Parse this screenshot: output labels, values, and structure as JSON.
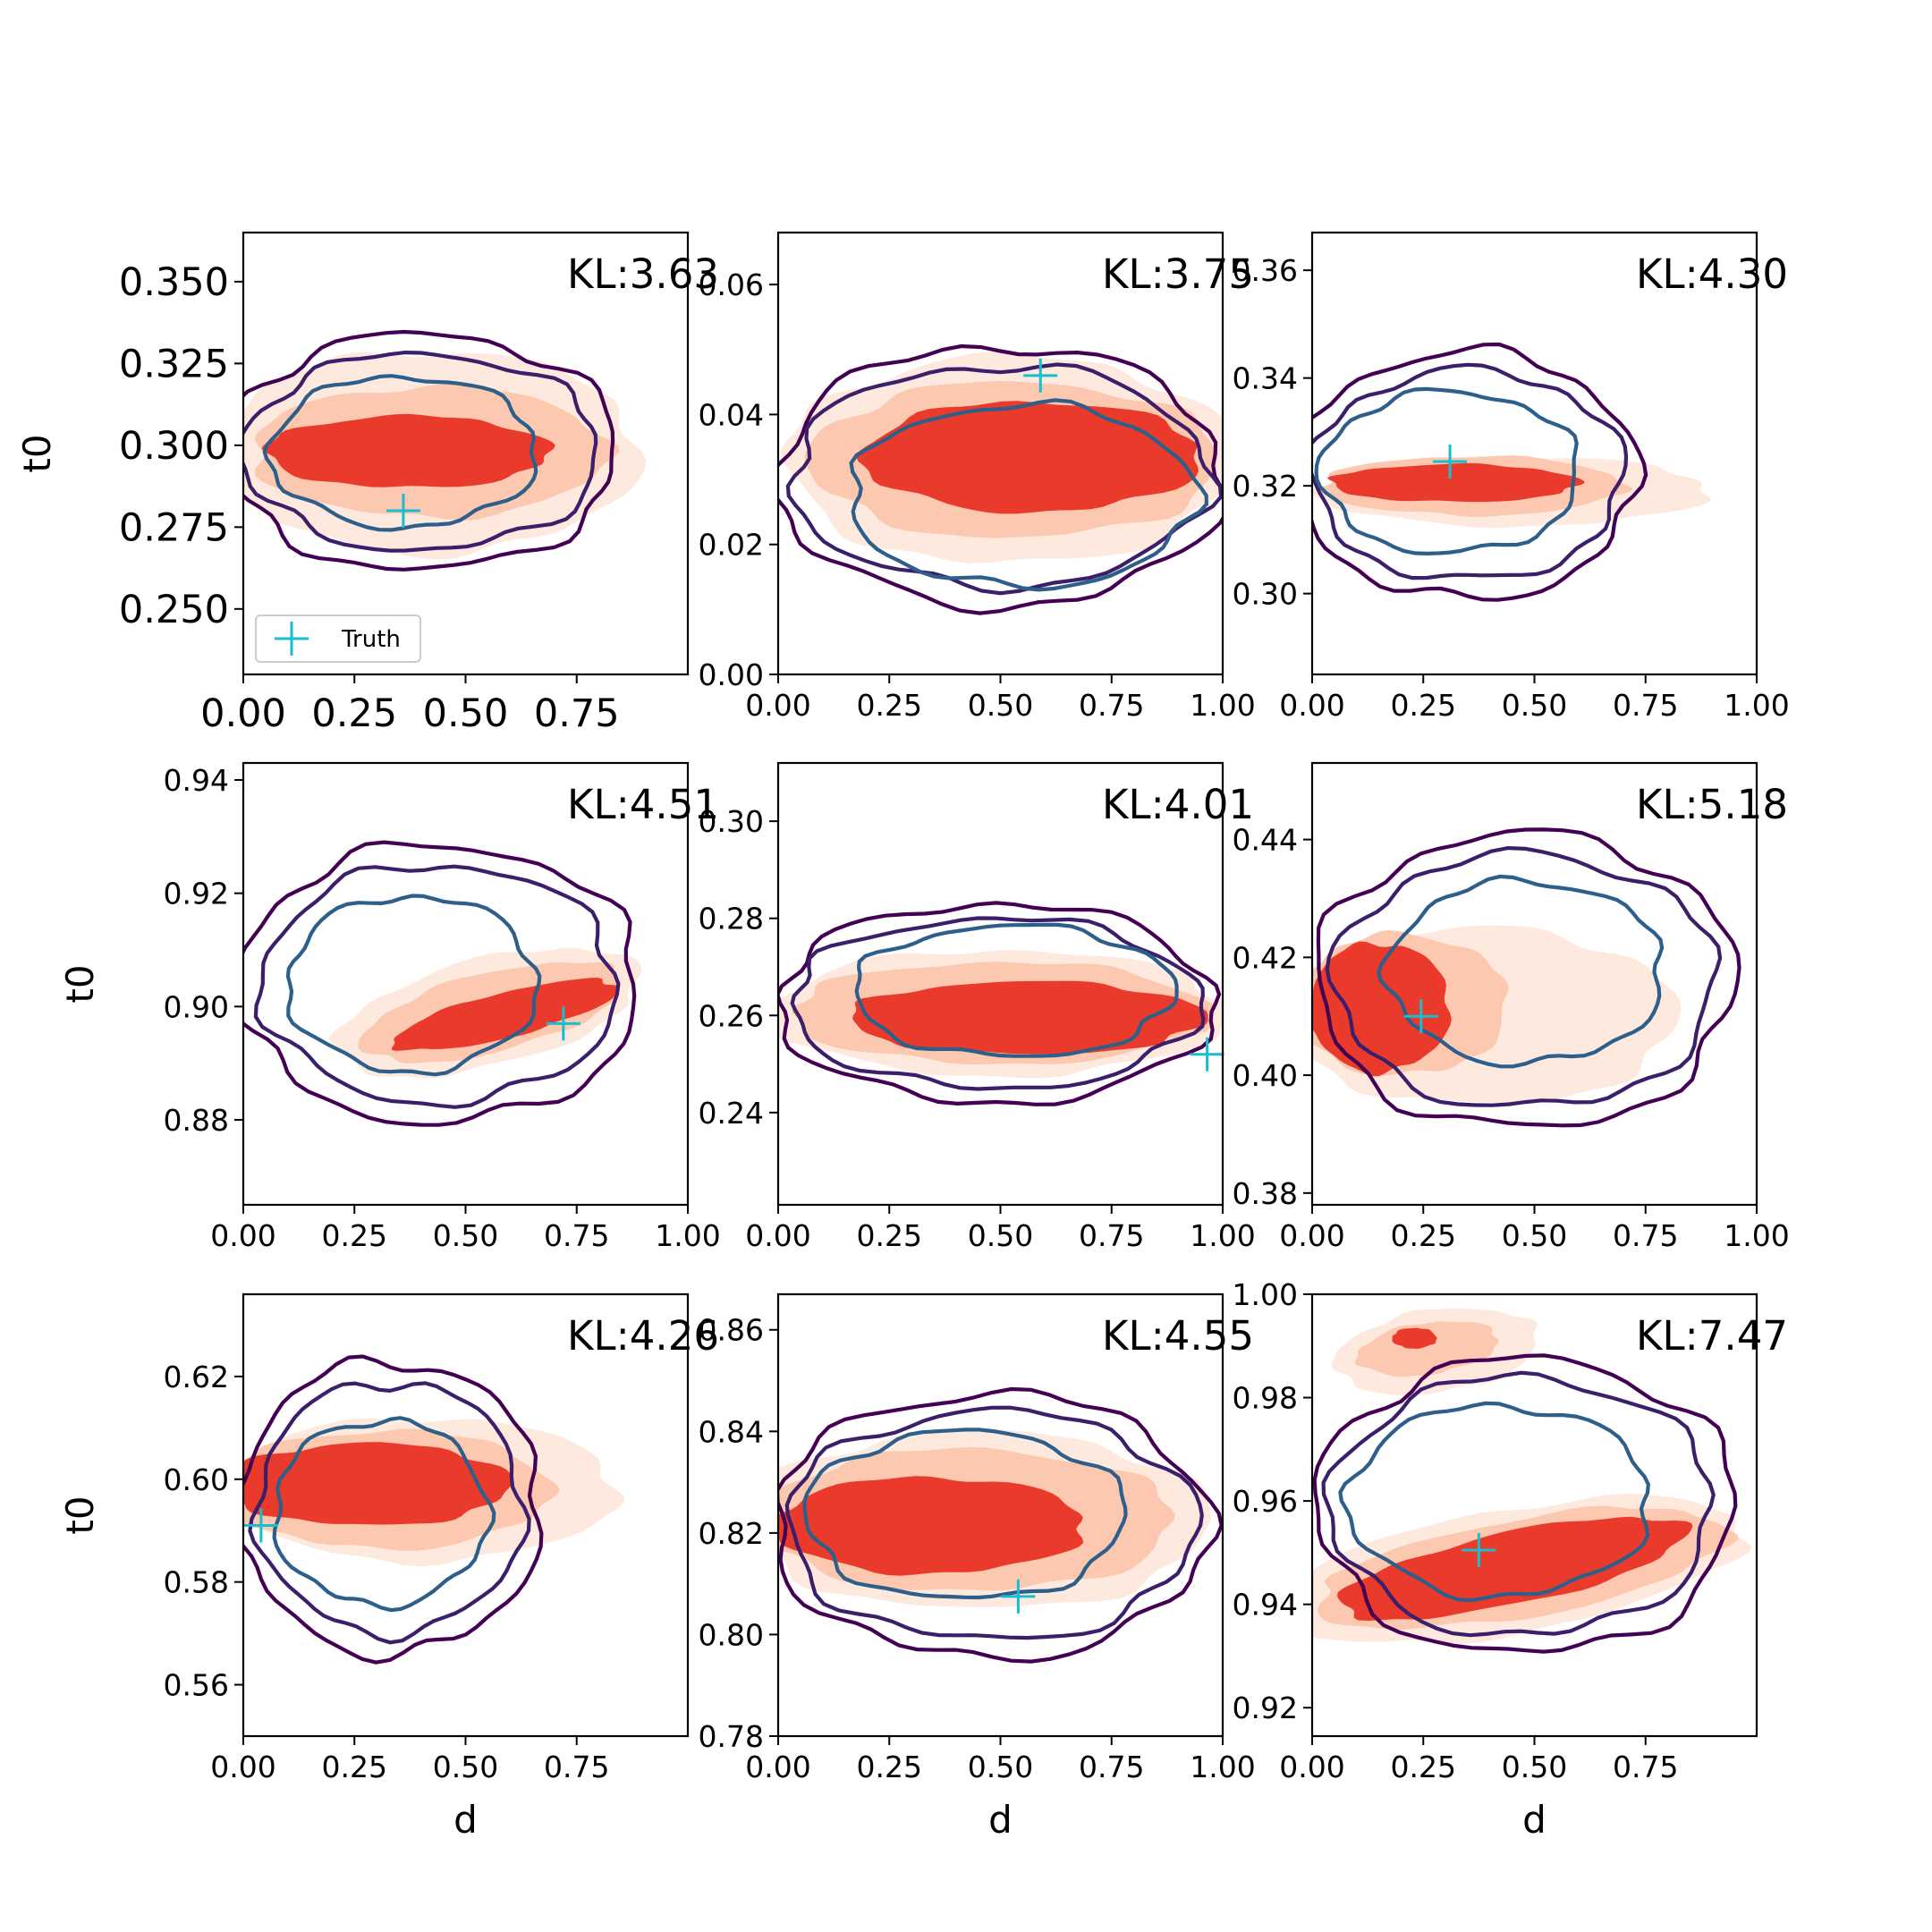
{
  "legend": {
    "label": "Truth",
    "color": "#17becf"
  },
  "colors": {
    "fill_outer": "#fee9de",
    "fill_mid": "#fcc8b0",
    "fill_inner": "#ea3a2b",
    "contour_outer": "#440154",
    "contour_mid": "#3b1f6b",
    "contour_inner": "#2e5f8a",
    "truth": "#17becf"
  },
  "chart_data": [
    {
      "type": "contour",
      "kl_text": "KL:3.63",
      "xlabel": "",
      "ylabel": "t0",
      "xlim": [
        0.0,
        1.0
      ],
      "ylim": [
        0.23,
        0.365
      ],
      "xticks": [
        "0.00",
        "0.25",
        "0.50",
        "0.75"
      ],
      "xtick_values": [
        0.0,
        0.25,
        0.5,
        0.75
      ],
      "yticks": [
        "0.250",
        "0.275",
        "0.300",
        "0.325",
        "0.350"
      ],
      "ytick_values": [
        0.25,
        0.275,
        0.3,
        0.325,
        0.35
      ],
      "truth": [
        0.36,
        0.28
      ],
      "legend": true,
      "fills": [
        {
          "level": "outer",
          "cx": 0.42,
          "cy": 0.298,
          "rx": 0.47,
          "ry": 0.031,
          "angle": 0
        },
        {
          "level": "mid",
          "cx": 0.42,
          "cy": 0.298,
          "rx": 0.4,
          "ry": 0.02,
          "angle": 0
        },
        {
          "level": "inner",
          "cx": 0.37,
          "cy": 0.298,
          "rx": 0.32,
          "ry": 0.011,
          "angle": 0
        }
      ],
      "contours": [
        {
          "level": "outer",
          "cx": 0.4,
          "cy": 0.298,
          "rx": 0.44,
          "ry": 0.036,
          "angle": 0
        },
        {
          "level": "mid",
          "cx": 0.4,
          "cy": 0.298,
          "rx": 0.4,
          "ry": 0.03,
          "angle": 0
        },
        {
          "level": "inner",
          "cx": 0.36,
          "cy": 0.298,
          "rx": 0.3,
          "ry": 0.023,
          "angle": 0
        }
      ]
    },
    {
      "type": "contour",
      "kl_text": "KL:3.75",
      "xlabel": "",
      "ylabel": "",
      "xlim": [
        0.0,
        1.0
      ],
      "ylim": [
        0.0,
        0.068
      ],
      "xticks": [
        "0.00",
        "0.25",
        "0.50",
        "0.75",
        "1.00"
      ],
      "xtick_values": [
        0.0,
        0.25,
        0.5,
        0.75,
        1.0
      ],
      "yticks": [
        "0.00",
        "0.02",
        "0.04",
        "0.06"
      ],
      "ytick_values": [
        0.0,
        0.02,
        0.04,
        0.06
      ],
      "truth": [
        0.59,
        0.046
      ],
      "legend": false,
      "fills": [
        {
          "level": "outer",
          "cx": 0.52,
          "cy": 0.033,
          "rx": 0.5,
          "ry": 0.016,
          "angle": 0
        },
        {
          "level": "mid",
          "cx": 0.53,
          "cy": 0.033,
          "rx": 0.46,
          "ry": 0.012,
          "angle": 0
        },
        {
          "level": "inner",
          "cx": 0.57,
          "cy": 0.0335,
          "rx": 0.38,
          "ry": 0.0085,
          "angle": 0
        }
      ],
      "contours": [
        {
          "level": "outer",
          "cx": 0.5,
          "cy": 0.0305,
          "rx": 0.5,
          "ry": 0.02,
          "angle": 0
        },
        {
          "level": "mid",
          "cx": 0.5,
          "cy": 0.0305,
          "rx": 0.47,
          "ry": 0.017,
          "angle": 0
        },
        {
          "level": "inner",
          "cx": 0.55,
          "cy": 0.0275,
          "rx": 0.39,
          "ry": 0.014,
          "angle": 0
        }
      ]
    },
    {
      "type": "contour",
      "kl_text": "KL:4.30",
      "xlabel": "",
      "ylabel": "",
      "xlim": [
        0.0,
        1.0
      ],
      "ylim": [
        0.285,
        0.367
      ],
      "xticks": [
        "0.00",
        "0.25",
        "0.50",
        "0.75",
        "1.00"
      ],
      "xtick_values": [
        0.0,
        0.25,
        0.5,
        0.75,
        1.0
      ],
      "yticks": [
        "0.30",
        "0.32",
        "0.34",
        "0.36"
      ],
      "ytick_values": [
        0.3,
        0.32,
        0.34,
        0.36
      ],
      "truth": [
        0.31,
        0.3245
      ],
      "legend": false,
      "fills": [
        {
          "level": "outer",
          "cx": 0.45,
          "cy": 0.319,
          "rx": 0.44,
          "ry": 0.0065,
          "angle": 0
        },
        {
          "level": "mid",
          "cx": 0.36,
          "cy": 0.32,
          "rx": 0.34,
          "ry": 0.0055,
          "angle": 0
        },
        {
          "level": "inner",
          "cx": 0.32,
          "cy": 0.3205,
          "rx": 0.28,
          "ry": 0.0035,
          "angle": 0
        }
      ],
      "contours": [
        {
          "level": "outer",
          "cx": 0.35,
          "cy": 0.322,
          "rx": 0.38,
          "ry": 0.023,
          "angle": 0
        },
        {
          "level": "mid",
          "cx": 0.35,
          "cy": 0.322,
          "rx": 0.35,
          "ry": 0.0195,
          "angle": 0
        },
        {
          "level": "inner",
          "cx": 0.31,
          "cy": 0.3225,
          "rx": 0.29,
          "ry": 0.015,
          "angle": 0
        }
      ]
    },
    {
      "type": "contour",
      "kl_text": "KL:4.51",
      "xlabel": "",
      "ylabel": "t0",
      "xlim": [
        0.0,
        1.0
      ],
      "ylim": [
        0.865,
        0.943
      ],
      "xticks": [
        "0.00",
        "0.25",
        "0.50",
        "0.75",
        "1.00"
      ],
      "xtick_values": [
        0.0,
        0.25,
        0.5,
        0.75,
        1.0
      ],
      "yticks": [
        "0.88",
        "0.90",
        "0.92",
        "0.94"
      ],
      "ytick_values": [
        0.88,
        0.9,
        0.92,
        0.94
      ],
      "truth": [
        0.72,
        0.897
      ],
      "legend": false,
      "fills": [
        {
          "level": "outer",
          "cx": 0.55,
          "cy": 0.899,
          "rx": 0.35,
          "ry": 0.0095,
          "angle": -14
        },
        {
          "level": "mid",
          "cx": 0.56,
          "cy": 0.899,
          "rx": 0.3,
          "ry": 0.007,
          "angle": -14
        },
        {
          "level": "inner",
          "cx": 0.59,
          "cy": 0.8985,
          "rx": 0.26,
          "ry": 0.004,
          "angle": -14
        }
      ],
      "contours": [
        {
          "level": "outer",
          "cx": 0.44,
          "cy": 0.904,
          "rx": 0.45,
          "ry": 0.0245,
          "angle": 0
        },
        {
          "level": "mid",
          "cx": 0.44,
          "cy": 0.904,
          "rx": 0.4,
          "ry": 0.021,
          "angle": 0
        },
        {
          "level": "inner",
          "cx": 0.38,
          "cy": 0.904,
          "rx": 0.28,
          "ry": 0.0155,
          "angle": 0
        }
      ]
    },
    {
      "type": "contour",
      "kl_text": "KL:4.01",
      "xlabel": "",
      "ylabel": "",
      "xlim": [
        0.0,
        1.0
      ],
      "ylim": [
        0.221,
        0.312
      ],
      "xticks": [
        "0.00",
        "0.25",
        "0.50",
        "0.75",
        "1.00"
      ],
      "xtick_values": [
        0.0,
        0.25,
        0.5,
        0.75,
        1.0
      ],
      "yticks": [
        "0.24",
        "0.26",
        "0.28",
        "0.30"
      ],
      "ytick_values": [
        0.24,
        0.26,
        0.28,
        0.3
      ],
      "truth": [
        0.965,
        0.252
      ],
      "legend": false,
      "fills": [
        {
          "level": "outer",
          "cx": 0.5,
          "cy": 0.2605,
          "rx": 0.51,
          "ry": 0.013,
          "angle": 0
        },
        {
          "level": "mid",
          "cx": 0.5,
          "cy": 0.2605,
          "rx": 0.47,
          "ry": 0.0105,
          "angle": 0
        },
        {
          "level": "inner",
          "cx": 0.56,
          "cy": 0.2595,
          "rx": 0.4,
          "ry": 0.0075,
          "angle": 0
        }
      ],
      "contours": [
        {
          "level": "outer",
          "cx": 0.49,
          "cy": 0.2625,
          "rx": 0.49,
          "ry": 0.0205,
          "angle": 0
        },
        {
          "level": "mid",
          "cx": 0.49,
          "cy": 0.2625,
          "rx": 0.46,
          "ry": 0.0175,
          "angle": 0
        },
        {
          "level": "inner",
          "cx": 0.53,
          "cy": 0.265,
          "rx": 0.36,
          "ry": 0.0135,
          "angle": 0
        }
      ]
    },
    {
      "type": "contour",
      "kl_text": "KL:5.18",
      "xlabel": "",
      "ylabel": "",
      "xlim": [
        0.0,
        1.0
      ],
      "ylim": [
        0.378,
        0.453
      ],
      "xticks": [
        "0.00",
        "0.25",
        "0.50",
        "0.75",
        "1.00"
      ],
      "xtick_values": [
        0.0,
        0.25,
        0.5,
        0.75,
        1.0
      ],
      "yticks": [
        "0.38",
        "0.40",
        "0.42",
        "0.44"
      ],
      "ytick_values": [
        0.38,
        0.4,
        0.42,
        0.44
      ],
      "truth": [
        0.245,
        0.41
      ],
      "legend": false,
      "fills": [
        {
          "level": "outer",
          "cx": 0.38,
          "cy": 0.41,
          "rx": 0.44,
          "ry": 0.015,
          "angle": 0
        },
        {
          "level": "mid",
          "cx": 0.2,
          "cy": 0.412,
          "rx": 0.24,
          "ry": 0.012,
          "angle": 0
        },
        {
          "level": "inner",
          "cx": 0.15,
          "cy": 0.4115,
          "rx": 0.16,
          "ry": 0.011,
          "angle": 0
        }
      ],
      "contours": [
        {
          "level": "outer",
          "cx": 0.48,
          "cy": 0.416,
          "rx": 0.47,
          "ry": 0.025,
          "angle": 0
        },
        {
          "level": "mid",
          "cx": 0.48,
          "cy": 0.416,
          "rx": 0.43,
          "ry": 0.0215,
          "angle": 0
        },
        {
          "level": "inner",
          "cx": 0.48,
          "cy": 0.4175,
          "rx": 0.31,
          "ry": 0.0155,
          "angle": 0
        }
      ]
    },
    {
      "type": "contour",
      "kl_text": "KL:4.26",
      "xlabel": "d",
      "ylabel": "t0",
      "xlim": [
        0.0,
        1.0
      ],
      "ylim": [
        0.55,
        0.636
      ],
      "xticks": [
        "0.00",
        "0.25",
        "0.50",
        "0.75"
      ],
      "xtick_values": [
        0.0,
        0.25,
        0.5,
        0.75
      ],
      "yticks": [
        "0.56",
        "0.58",
        "0.60",
        "0.62"
      ],
      "ytick_values": [
        0.56,
        0.58,
        0.6,
        0.62
      ],
      "truth": [
        0.04,
        0.591
      ],
      "legend": false,
      "fills": [
        {
          "level": "outer",
          "cx": 0.4,
          "cy": 0.598,
          "rx": 0.44,
          "ry": 0.014,
          "angle": 0
        },
        {
          "level": "mid",
          "cx": 0.32,
          "cy": 0.598,
          "rx": 0.37,
          "ry": 0.0115,
          "angle": 0
        },
        {
          "level": "inner",
          "cx": 0.28,
          "cy": 0.599,
          "rx": 0.32,
          "ry": 0.008,
          "angle": 0
        }
      ],
      "contours": [
        {
          "level": "outer",
          "cx": 0.33,
          "cy": 0.5945,
          "rx": 0.34,
          "ry": 0.0285,
          "angle": 0
        },
        {
          "level": "mid",
          "cx": 0.33,
          "cy": 0.5945,
          "rx": 0.3,
          "ry": 0.0245,
          "angle": 0
        },
        {
          "level": "inner",
          "cx": 0.31,
          "cy": 0.5935,
          "rx": 0.24,
          "ry": 0.018,
          "angle": 0
        }
      ]
    },
    {
      "type": "contour",
      "kl_text": "KL:4.55",
      "xlabel": "d",
      "ylabel": "",
      "xlim": [
        0.0,
        1.0
      ],
      "ylim": [
        0.78,
        0.867
      ],
      "xticks": [
        "0.00",
        "0.25",
        "0.50",
        "0.75",
        "1.00"
      ],
      "xtick_values": [
        0.0,
        0.25,
        0.5,
        0.75,
        1.0
      ],
      "yticks": [
        "0.78",
        "0.80",
        "0.82",
        "0.84",
        "0.86"
      ],
      "ytick_values": [
        0.78,
        0.8,
        0.82,
        0.84,
        0.86
      ],
      "truth": [
        0.54,
        0.8075
      ],
      "legend": false,
      "fills": [
        {
          "level": "outer",
          "cx": 0.45,
          "cy": 0.8225,
          "rx": 0.52,
          "ry": 0.0175,
          "angle": 0
        },
        {
          "level": "mid",
          "cx": 0.42,
          "cy": 0.8225,
          "rx": 0.47,
          "ry": 0.014,
          "angle": 0
        },
        {
          "level": "inner",
          "cx": 0.34,
          "cy": 0.8215,
          "rx": 0.35,
          "ry": 0.0095,
          "angle": 0
        }
      ],
      "contours": [
        {
          "level": "outer",
          "cx": 0.48,
          "cy": 0.8215,
          "rx": 0.49,
          "ry": 0.026,
          "angle": 0
        },
        {
          "level": "mid",
          "cx": 0.48,
          "cy": 0.8215,
          "rx": 0.46,
          "ry": 0.0225,
          "angle": 0
        },
        {
          "level": "inner",
          "cx": 0.42,
          "cy": 0.8235,
          "rx": 0.36,
          "ry": 0.0165,
          "angle": 0
        }
      ]
    },
    {
      "type": "contour",
      "kl_text": "KL:7.47",
      "xlabel": "d",
      "ylabel": "",
      "xlim": [
        0.0,
        1.0
      ],
      "ylim": [
        0.9145,
        1.0
      ],
      "xticks": [
        "0.00",
        "0.25",
        "0.50",
        "0.75"
      ],
      "xtick_values": [
        0.0,
        0.25,
        0.5,
        0.75
      ],
      "yticks": [
        "0.92",
        "0.94",
        "0.96",
        "0.98",
        "1.00"
      ],
      "ytick_values": [
        0.92,
        0.94,
        0.96,
        0.98,
        1.0
      ],
      "truth": [
        0.375,
        0.9505
      ],
      "legend": false,
      "fills": [
        {
          "level": "outer",
          "cx": 0.45,
          "cy": 0.9465,
          "rx": 0.53,
          "ry": 0.012,
          "angle": -10
        },
        {
          "level": "mid",
          "cx": 0.47,
          "cy": 0.947,
          "rx": 0.47,
          "ry": 0.0095,
          "angle": -10
        },
        {
          "level": "inner",
          "cx": 0.45,
          "cy": 0.947,
          "rx": 0.4,
          "ry": 0.007,
          "angle": -12
        },
        {
          "level": "outer",
          "cx": 0.28,
          "cy": 0.989,
          "rx": 0.23,
          "ry": 0.008,
          "angle": -8
        },
        {
          "level": "mid",
          "cx": 0.26,
          "cy": 0.9895,
          "rx": 0.16,
          "ry": 0.005,
          "angle": -8
        },
        {
          "level": "inner",
          "cx": 0.23,
          "cy": 0.9915,
          "rx": 0.05,
          "ry": 0.002,
          "angle": 0
        }
      ],
      "contours": [
        {
          "level": "outer",
          "cx": 0.48,
          "cy": 0.959,
          "rx": 0.47,
          "ry": 0.0285,
          "angle": 0
        },
        {
          "level": "mid",
          "cx": 0.47,
          "cy": 0.959,
          "rx": 0.43,
          "ry": 0.025,
          "angle": 0
        },
        {
          "level": "inner",
          "cx": 0.42,
          "cy": 0.96,
          "rx": 0.34,
          "ry": 0.0185,
          "angle": 0
        }
      ]
    }
  ]
}
